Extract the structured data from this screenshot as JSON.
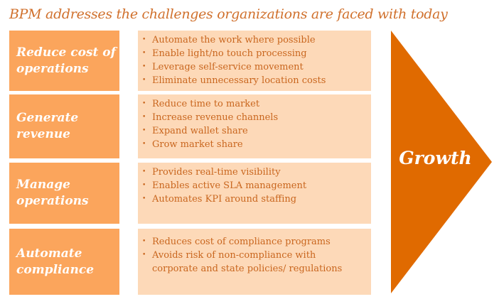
{
  "title": "BPM addresses the challenges organizations are faced with today",
  "colors": {
    "label_box": "#FBA55C",
    "detail_box": "#FDD9B8",
    "text": "#C9661E",
    "arrow": "#E06A00"
  },
  "rows": [
    {
      "label": "Reduce cost of operations",
      "items": [
        "Automate the work where possible",
        "Enable light/no touch processing",
        "Leverage self-service movement",
        "Eliminate unnecessary location costs"
      ]
    },
    {
      "label": "Generate revenue",
      "items": [
        "Reduce time to market",
        "Increase revenue channels",
        "Expand wallet share",
        "Grow market share"
      ]
    },
    {
      "label": "Manage operations",
      "items": [
        "Provides real-time visibility",
        "Enables active SLA management",
        "Automates KPI around staffing"
      ]
    },
    {
      "label": "Automate compliance",
      "items": [
        "Reduces cost of compliance programs",
        "Avoids risk of non-compliance with corporate and state policies/ regulations"
      ]
    }
  ],
  "arrow": {
    "label": "Growth"
  }
}
